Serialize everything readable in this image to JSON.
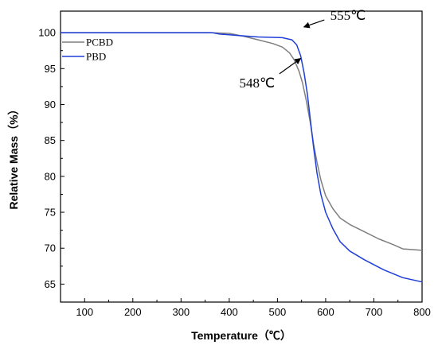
{
  "chart_data": {
    "type": "line",
    "xlabel": "Temperature（℃）",
    "ylabel": "Relative Mass（%）",
    "xlim": [
      50,
      800
    ],
    "ylim": [
      62.5,
      103
    ],
    "xticks": [
      100,
      200,
      300,
      400,
      500,
      600,
      700,
      800
    ],
    "yticks": [
      65,
      70,
      75,
      80,
      85,
      90,
      95,
      100
    ],
    "legend_position": "top-left",
    "grid": false,
    "series": [
      {
        "name": "PCBD",
        "color": "#7f7f7f",
        "x": [
          50,
          200,
          360,
          400,
          430,
          460,
          490,
          510,
          525,
          535,
          545,
          552,
          560,
          568,
          575,
          582,
          590,
          600,
          615,
          630,
          650,
          680,
          710,
          740,
          760,
          780,
          800
        ],
        "y": [
          100,
          100,
          100,
          99.9,
          99.5,
          99.0,
          98.5,
          98.0,
          97.2,
          96.2,
          94.6,
          93.0,
          90.5,
          87.5,
          84.5,
          82.0,
          79.5,
          77.3,
          75.5,
          74.2,
          73.3,
          72.3,
          71.3,
          70.5,
          69.9,
          69.8,
          69.7
        ]
      },
      {
        "name": "PBD",
        "color": "#1f3fd8",
        "x": [
          50,
          200,
          365,
          380,
          400,
          420,
          440,
          460,
          490,
          510,
          530,
          540,
          548,
          555,
          562,
          568,
          575,
          582,
          590,
          600,
          615,
          630,
          650,
          680,
          720,
          760,
          800
        ],
        "y": [
          100,
          100,
          100,
          99.8,
          99.7,
          99.6,
          99.5,
          99.4,
          99.35,
          99.3,
          99.0,
          98.3,
          96.8,
          94.5,
          91.5,
          88.0,
          84.0,
          80.5,
          77.5,
          75.0,
          72.7,
          70.9,
          69.6,
          68.4,
          67.0,
          65.9,
          65.3
        ]
      }
    ],
    "annotations": [
      {
        "text": "555℃",
        "point": [
          555,
          100.8
        ],
        "label_at": [
          616,
          102.2
        ]
      },
      {
        "text": "548℃",
        "point": [
          548,
          96.4
        ],
        "label_at": [
          488,
          93.5
        ]
      }
    ]
  }
}
